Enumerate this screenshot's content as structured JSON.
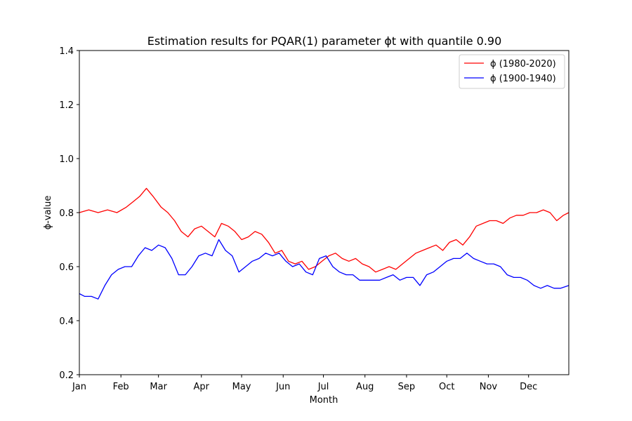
{
  "chart_data": {
    "type": "line",
    "title": "Estimation results for PQAR(1) parameter ϕt with quantile 0.90",
    "xlabel": "Month",
    "ylabel": "ϕ-value",
    "xlim": [
      1,
      366
    ],
    "ylim": [
      0.2,
      1.4
    ],
    "x_ticks": [
      {
        "value": 1,
        "label": "Jan"
      },
      {
        "value": 32,
        "label": "Feb"
      },
      {
        "value": 60,
        "label": "Mar"
      },
      {
        "value": 92,
        "label": "Apr"
      },
      {
        "value": 122,
        "label": "May"
      },
      {
        "value": 153,
        "label": "Jun"
      },
      {
        "value": 183,
        "label": "Jul"
      },
      {
        "value": 214,
        "label": "Aug"
      },
      {
        "value": 245,
        "label": "Sep"
      },
      {
        "value": 275,
        "label": "Oct"
      },
      {
        "value": 306,
        "label": "Nov"
      },
      {
        "value": 336,
        "label": "Dec"
      }
    ],
    "y_ticks": [
      {
        "value": 0.2,
        "label": "0.2"
      },
      {
        "value": 0.4,
        "label": "0.4"
      },
      {
        "value": 0.6,
        "label": "0.6"
      },
      {
        "value": 0.8,
        "label": "0.8"
      },
      {
        "value": 1.0,
        "label": "1.0"
      },
      {
        "value": 1.2,
        "label": "1.2"
      },
      {
        "value": 1.4,
        "label": "1.4"
      }
    ],
    "grid": false,
    "legend_position": "top-right",
    "series": [
      {
        "name": "ϕ (1980-2020)",
        "color": "#ff0000",
        "x": [
          1,
          8,
          15,
          22,
          29,
          36,
          41,
          46,
          51,
          56,
          62,
          67,
          72,
          77,
          82,
          87,
          92,
          97,
          102,
          107,
          112,
          117,
          122,
          127,
          132,
          137,
          142,
          147,
          152,
          157,
          162,
          167,
          172,
          177,
          182,
          187,
          192,
          197,
          202,
          207,
          212,
          217,
          222,
          227,
          232,
          237,
          242,
          247,
          252,
          257,
          262,
          267,
          272,
          277,
          282,
          287,
          292,
          297,
          302,
          307,
          312,
          317,
          322,
          327,
          332,
          337,
          342,
          347,
          352,
          357,
          362,
          366
        ],
        "y": [
          0.8,
          0.81,
          0.8,
          0.81,
          0.8,
          0.82,
          0.84,
          0.86,
          0.89,
          0.86,
          0.82,
          0.8,
          0.77,
          0.73,
          0.71,
          0.74,
          0.75,
          0.73,
          0.71,
          0.76,
          0.75,
          0.73,
          0.7,
          0.71,
          0.73,
          0.72,
          0.69,
          0.65,
          0.66,
          0.62,
          0.61,
          0.62,
          0.59,
          0.6,
          0.62,
          0.64,
          0.65,
          0.63,
          0.62,
          0.63,
          0.61,
          0.6,
          0.58,
          0.59,
          0.6,
          0.59,
          0.61,
          0.63,
          0.65,
          0.66,
          0.67,
          0.68,
          0.66,
          0.69,
          0.7,
          0.68,
          0.71,
          0.75,
          0.76,
          0.77,
          0.77,
          0.76,
          0.78,
          0.79,
          0.79,
          0.8,
          0.8,
          0.81,
          0.8,
          0.77,
          0.79,
          0.8
        ]
      },
      {
        "name": "ϕ (1900-1940)",
        "color": "#0000ff",
        "x": [
          1,
          5,
          10,
          15,
          20,
          25,
          30,
          35,
          40,
          45,
          50,
          55,
          60,
          65,
          70,
          75,
          80,
          85,
          90,
          95,
          100,
          105,
          110,
          115,
          120,
          125,
          130,
          135,
          140,
          145,
          150,
          155,
          160,
          165,
          170,
          175,
          180,
          185,
          190,
          195,
          200,
          205,
          210,
          215,
          220,
          225,
          230,
          235,
          240,
          245,
          250,
          255,
          260,
          265,
          270,
          275,
          280,
          285,
          290,
          295,
          300,
          305,
          310,
          315,
          320,
          325,
          330,
          335,
          340,
          345,
          350,
          355,
          360,
          366
        ],
        "y": [
          0.5,
          0.49,
          0.49,
          0.48,
          0.53,
          0.57,
          0.59,
          0.6,
          0.6,
          0.64,
          0.67,
          0.66,
          0.68,
          0.67,
          0.63,
          0.57,
          0.57,
          0.6,
          0.64,
          0.65,
          0.64,
          0.7,
          0.66,
          0.64,
          0.58,
          0.6,
          0.62,
          0.63,
          0.65,
          0.64,
          0.65,
          0.62,
          0.6,
          0.61,
          0.58,
          0.57,
          0.63,
          0.64,
          0.6,
          0.58,
          0.57,
          0.57,
          0.55,
          0.55,
          0.55,
          0.55,
          0.56,
          0.57,
          0.55,
          0.56,
          0.56,
          0.53,
          0.57,
          0.58,
          0.6,
          0.62,
          0.63,
          0.63,
          0.65,
          0.63,
          0.62,
          0.61,
          0.61,
          0.6,
          0.57,
          0.56,
          0.56,
          0.55,
          0.53,
          0.52,
          0.53,
          0.52,
          0.52,
          0.53
        ]
      }
    ]
  }
}
